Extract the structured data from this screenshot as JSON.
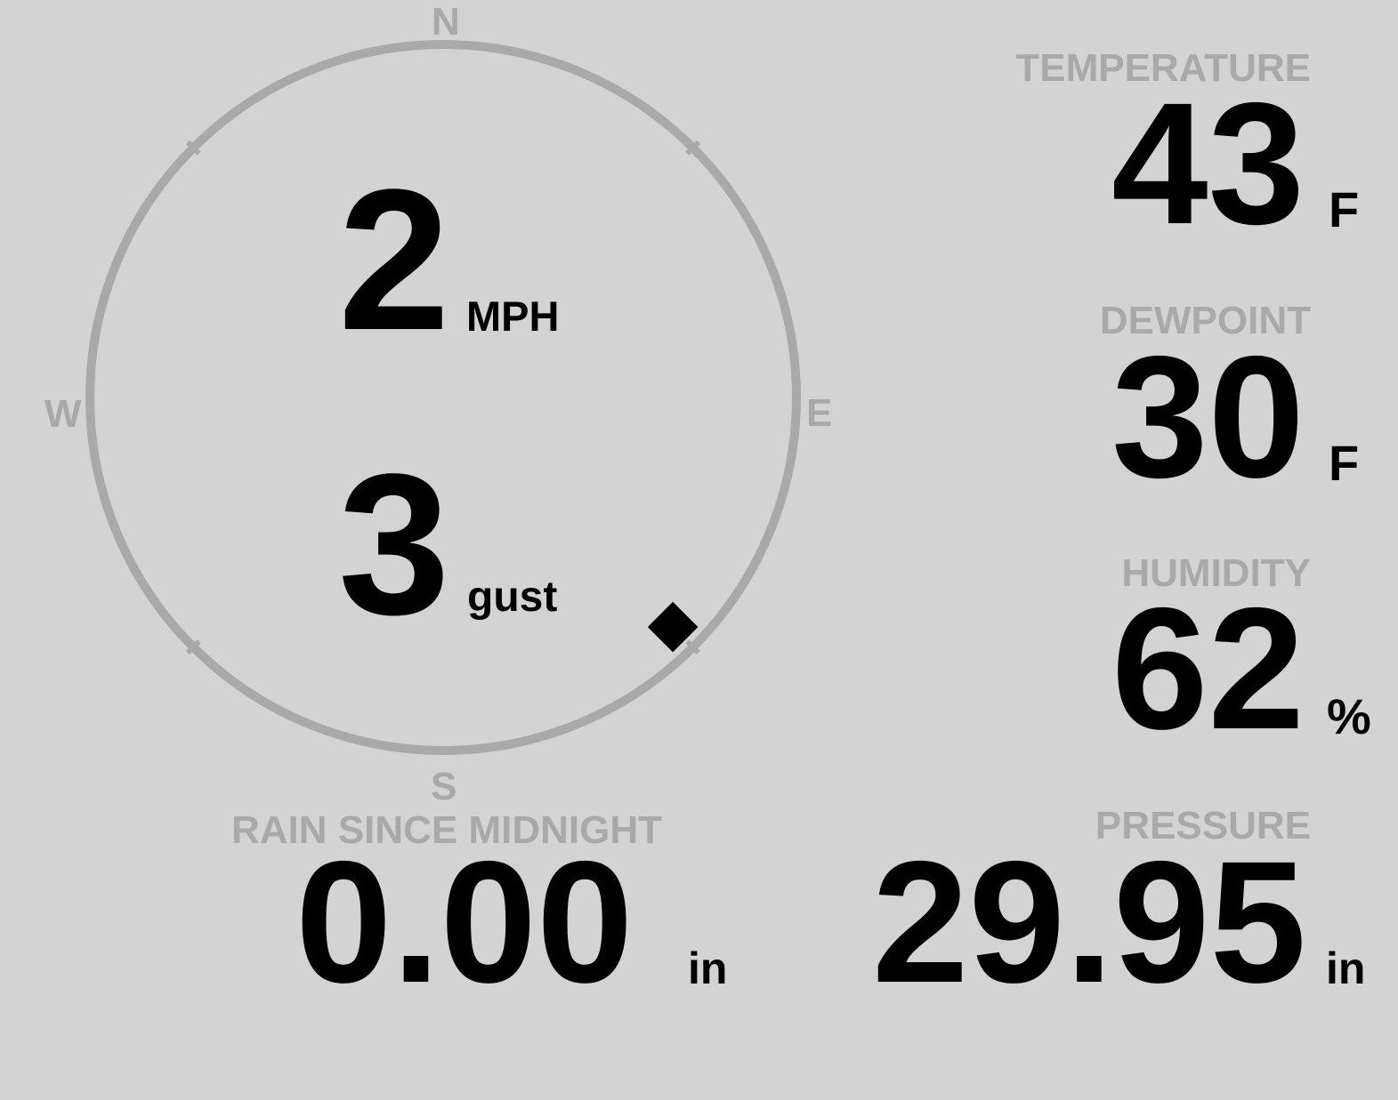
{
  "colors": {
    "background": "#d3d3d3",
    "label": "#a9a9a9",
    "value": "#000000",
    "ring": "#a9a9a9"
  },
  "compass": {
    "north": "N",
    "south": "S",
    "east": "E",
    "west": "W",
    "direction_degrees": 135,
    "marker_icon": "diamond-icon"
  },
  "wind": {
    "speed": "2",
    "speed_unit": "MPH",
    "gust": "3",
    "gust_unit": "gust"
  },
  "temperature": {
    "label": "TEMPERATURE",
    "value": "43",
    "unit": "F"
  },
  "dewpoint": {
    "label": "DEWPOINT",
    "value": "30",
    "unit": "F"
  },
  "humidity": {
    "label": "HUMIDITY",
    "value": "62",
    "unit": "%"
  },
  "rain": {
    "label": "RAIN SINCE MIDNIGHT",
    "value": "0.00",
    "unit": "in"
  },
  "pressure": {
    "label": "PRESSURE",
    "value": "29.95",
    "unit": "in"
  }
}
